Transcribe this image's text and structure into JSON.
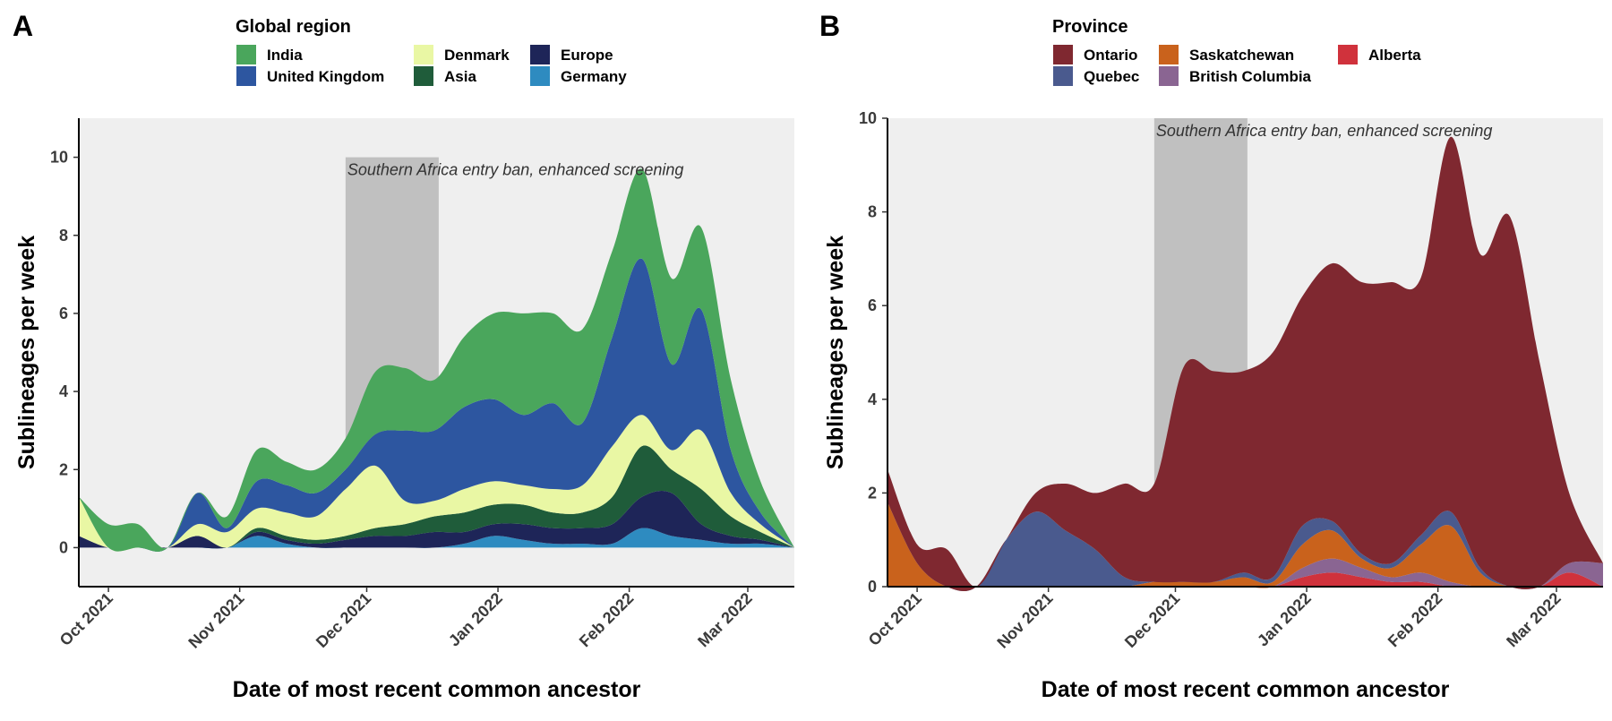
{
  "figure": {
    "panels": [
      {
        "letter": "A",
        "legend_title": "Global region",
        "annotation": "Southern Africa entry ban, enhanced screening",
        "xlabel": "Date of most recent common ancestor",
        "ylabel": "Sublineages per week"
      },
      {
        "letter": "B",
        "legend_title": "Province",
        "annotation": "Southern Africa entry ban, enhanced screening",
        "xlabel": "Date of most recent common ancestor",
        "ylabel": "Sublineages per week"
      }
    ]
  },
  "chart_data": [
    {
      "type": "area",
      "stacked": true,
      "title": "",
      "panel": "A",
      "xlabel": "Date of most recent common ancestor",
      "ylabel": "Sublineages per week",
      "xlim": [
        "2021-09-24",
        "2022-03-12"
      ],
      "ylim": [
        -1,
        11
      ],
      "x_ticks": [
        {
          "date": "2021-10-01",
          "label": "Oct 2021"
        },
        {
          "date": "2021-11-01",
          "label": "Nov 2021"
        },
        {
          "date": "2021-12-01",
          "label": "Dec 2021"
        },
        {
          "date": "2022-01-01",
          "label": "Jan 2022"
        },
        {
          "date": "2022-02-01",
          "label": "Feb 2022"
        },
        {
          "date": "2022-03-01",
          "label": "Mar 2022"
        }
      ],
      "y_ticks": [
        0,
        2,
        4,
        6,
        8,
        10
      ],
      "shaded_period": {
        "start": "2021-11-26",
        "end": "2021-12-18",
        "label": "Southern Africa entry ban, enhanced screening"
      },
      "legend": {
        "title": "Global region",
        "position": "top"
      },
      "x": [
        "2021-09-24",
        "2021-10-01",
        "2021-10-08",
        "2021-10-15",
        "2021-10-22",
        "2021-10-29",
        "2021-11-05",
        "2021-11-12",
        "2021-11-19",
        "2021-11-26",
        "2021-12-03",
        "2021-12-10",
        "2021-12-17",
        "2021-12-24",
        "2021-12-31",
        "2022-01-07",
        "2022-01-14",
        "2022-01-21",
        "2022-01-28",
        "2022-02-04",
        "2022-02-11",
        "2022-02-18",
        "2022-02-25",
        "2022-03-04",
        "2022-03-12"
      ],
      "series": [
        {
          "name": "Germany",
          "color": "#2e8bc0",
          "values": [
            0,
            0,
            0,
            0,
            0,
            0,
            0.3,
            0.1,
            0,
            0,
            0,
            0,
            0,
            0.1,
            0.3,
            0.2,
            0.1,
            0.1,
            0.1,
            0.5,
            0.3,
            0.2,
            0.1,
            0.1,
            0
          ]
        },
        {
          "name": "Europe",
          "color": "#1e2558",
          "values": [
            0.3,
            0,
            0,
            0,
            0.3,
            0,
            0.1,
            0.1,
            0.1,
            0.2,
            0.3,
            0.3,
            0.4,
            0.3,
            0.3,
            0.4,
            0.4,
            0.4,
            0.5,
            0.8,
            1.1,
            0.4,
            0.2,
            0.1,
            0
          ]
        },
        {
          "name": "Asia",
          "color": "#1f5c3a",
          "values": [
            0,
            0,
            0,
            0,
            0,
            0,
            0.1,
            0.1,
            0.1,
            0.1,
            0.2,
            0.3,
            0.4,
            0.5,
            0.5,
            0.5,
            0.4,
            0.4,
            0.7,
            1.3,
            0.6,
            0.9,
            0.5,
            0.2,
            0
          ]
        },
        {
          "name": "Denmark",
          "color": "#e9f7a4",
          "values": [
            1,
            0,
            0,
            0,
            0.3,
            0.4,
            0.5,
            0.6,
            0.6,
            1.2,
            1.6,
            0.6,
            0.4,
            0.6,
            0.6,
            0.5,
            0.6,
            0.7,
            1.3,
            0.8,
            0.5,
            1.5,
            0.6,
            0.2,
            0
          ]
        },
        {
          "name": "United Kingdom",
          "color": "#2d56a0",
          "values": [
            0,
            0,
            0,
            0,
            0.8,
            0.1,
            0.7,
            0.7,
            0.6,
            0.5,
            0.8,
            1.8,
            1.8,
            2.1,
            2.1,
            1.8,
            2.2,
            1.6,
            2.8,
            4.0,
            2.2,
            3.1,
            1.1,
            0.3,
            0
          ]
        },
        {
          "name": "India",
          "color": "#4aa65c",
          "values": [
            0,
            0.6,
            0.6,
            0,
            0,
            0.3,
            0.8,
            0.6,
            0.6,
            0.8,
            1.6,
            1.6,
            1.3,
            1.8,
            2.2,
            2.6,
            2.3,
            2.4,
            2.2,
            2.3,
            2.2,
            2.1,
            1.8,
            0.8,
            0
          ]
        }
      ]
    },
    {
      "type": "area",
      "stacked": true,
      "title": "",
      "panel": "B",
      "xlabel": "Date of most recent common ancestor",
      "ylabel": "Sublineages per week",
      "xlim": [
        "2021-09-24",
        "2022-03-12"
      ],
      "ylim": [
        0,
        10
      ],
      "x_ticks": [
        {
          "date": "2021-10-01",
          "label": "Oct 2021"
        },
        {
          "date": "2021-11-01",
          "label": "Nov 2021"
        },
        {
          "date": "2021-12-01",
          "label": "Dec 2021"
        },
        {
          "date": "2022-01-01",
          "label": "Jan 2022"
        },
        {
          "date": "2022-02-01",
          "label": "Feb 2022"
        },
        {
          "date": "2022-03-01",
          "label": "Mar 2022"
        }
      ],
      "y_ticks": [
        0,
        2,
        4,
        6,
        8,
        10
      ],
      "shaded_period": {
        "start": "2021-11-26",
        "end": "2021-12-18",
        "label": "Southern Africa entry ban, enhanced screening"
      },
      "legend": {
        "title": "Province",
        "position": "top"
      },
      "x": [
        "2021-09-24",
        "2021-10-01",
        "2021-10-08",
        "2021-10-15",
        "2021-10-22",
        "2021-10-29",
        "2021-11-05",
        "2021-11-12",
        "2021-11-19",
        "2021-11-26",
        "2021-12-03",
        "2021-12-10",
        "2021-12-17",
        "2021-12-24",
        "2021-12-31",
        "2022-01-07",
        "2022-01-14",
        "2022-01-21",
        "2022-01-28",
        "2022-02-04",
        "2022-02-11",
        "2022-02-18",
        "2022-02-25",
        "2022-03-04",
        "2022-03-12"
      ],
      "series": [
        {
          "name": "Alberta",
          "color": "#d0323c",
          "values": [
            0,
            0,
            0,
            0,
            0,
            0,
            0,
            0,
            0,
            0,
            0,
            0,
            0,
            0,
            0.2,
            0.3,
            0.2,
            0.1,
            0.1,
            0,
            0,
            0,
            0,
            0.3,
            0
          ]
        },
        {
          "name": "British Columbia",
          "color": "#8a6592",
          "values": [
            0,
            0,
            0,
            0,
            0,
            0,
            0,
            0,
            0,
            0,
            0,
            0,
            0,
            0,
            0.2,
            0.3,
            0.2,
            0.1,
            0.2,
            0.1,
            0,
            0,
            0,
            0.2,
            0.5
          ]
        },
        {
          "name": "Saskatchewan",
          "color": "#c9621c",
          "values": [
            1.8,
            0.5,
            0,
            0,
            0,
            0,
            0,
            0,
            0,
            0.1,
            0.1,
            0.1,
            0.2,
            0.1,
            0.5,
            0.6,
            0.2,
            0.2,
            0.6,
            1.2,
            0.3,
            0,
            0,
            0,
            0
          ]
        },
        {
          "name": "Quebec",
          "color": "#4a5a8e",
          "values": [
            0,
            0,
            0,
            0,
            1.0,
            1.6,
            1.2,
            0.8,
            0.2,
            0,
            0,
            0,
            0.1,
            0.1,
            0.4,
            0.2,
            0.1,
            0.1,
            0.2,
            0.3,
            0.1,
            0,
            0,
            0,
            0
          ]
        },
        {
          "name": "Ontario",
          "color": "#7f2830",
          "values": [
            0.7,
            0.4,
            0.8,
            0,
            0,
            0.4,
            1.0,
            1.2,
            2.0,
            2.1,
            4.6,
            4.5,
            4.3,
            4.8,
            4.9,
            5.5,
            5.8,
            6.0,
            5.5,
            8.0,
            6.7,
            7.9,
            4.8,
            1.5,
            0
          ]
        }
      ]
    }
  ]
}
